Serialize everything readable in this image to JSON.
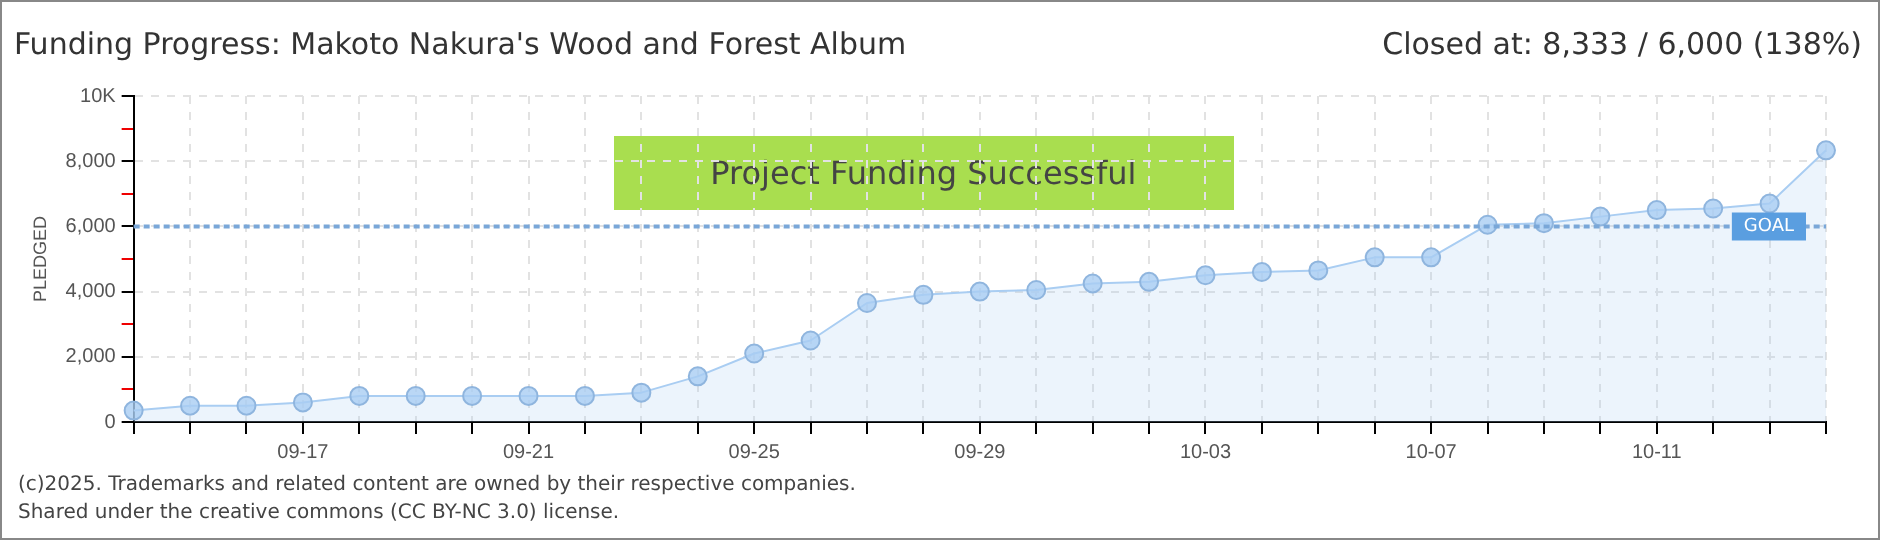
{
  "chart_data": {
    "type": "area",
    "title": "Funding Progress: Makoto Nakura's Wood and Forest Album",
    "subtitle": "Closed at:  8,333 /  6,000 (138%)",
    "ylabel": "PLEDGED",
    "categories": [
      null,
      null,
      null,
      "09-17",
      null,
      null,
      null,
      "09-21",
      null,
      null,
      null,
      "09-25",
      null,
      null,
      null,
      "09-29",
      null,
      null,
      null,
      "10-03",
      null,
      null,
      null,
      "10-07",
      null,
      null,
      null,
      "10-11",
      null,
      null,
      null
    ],
    "series": [
      {
        "color": "#a9cdf2",
        "values": [
          350,
          500,
          500,
          600,
          800,
          800,
          800,
          800,
          800,
          900,
          1400,
          2100,
          2500,
          3650,
          3900,
          4000,
          4050,
          4250,
          4300,
          4500,
          4600,
          4650,
          5050,
          5050,
          6050,
          6100,
          6300,
          6500,
          6550,
          6700,
          8333
        ]
      }
    ],
    "ylim": [
      0,
      10000
    ],
    "yticks": [
      0,
      {
        "value": 1000,
        "label": null
      },
      "2,000",
      {
        "value": 3000,
        "label": null
      },
      {
        "value": 4000,
        "label": "4,000"
      },
      {
        "value": 5000,
        "label": null
      },
      {
        "value": 6000,
        "label": "6,000"
      },
      {
        "value": 7000,
        "label": null
      },
      {
        "value": 8000,
        "label": "8,000"
      },
      {
        "value": 9000,
        "label": null
      },
      {
        "value": 10000,
        "label": "10K"
      }
    ],
    "grid": true,
    "marker": "circle",
    "legend": false,
    "ref_lines": [
      {
        "axis": "y",
        "value": 6000,
        "label": "GOAL",
        "color": "#7aa7d8",
        "line_style": "dotted"
      }
    ],
    "annotations": [
      "Project Funding Successful",
      "(c)2025. Trademarks and related content are owned by their respective companies.",
      "Shared under the creative commons (CC BY-NC 3.0) license."
    ]
  }
}
